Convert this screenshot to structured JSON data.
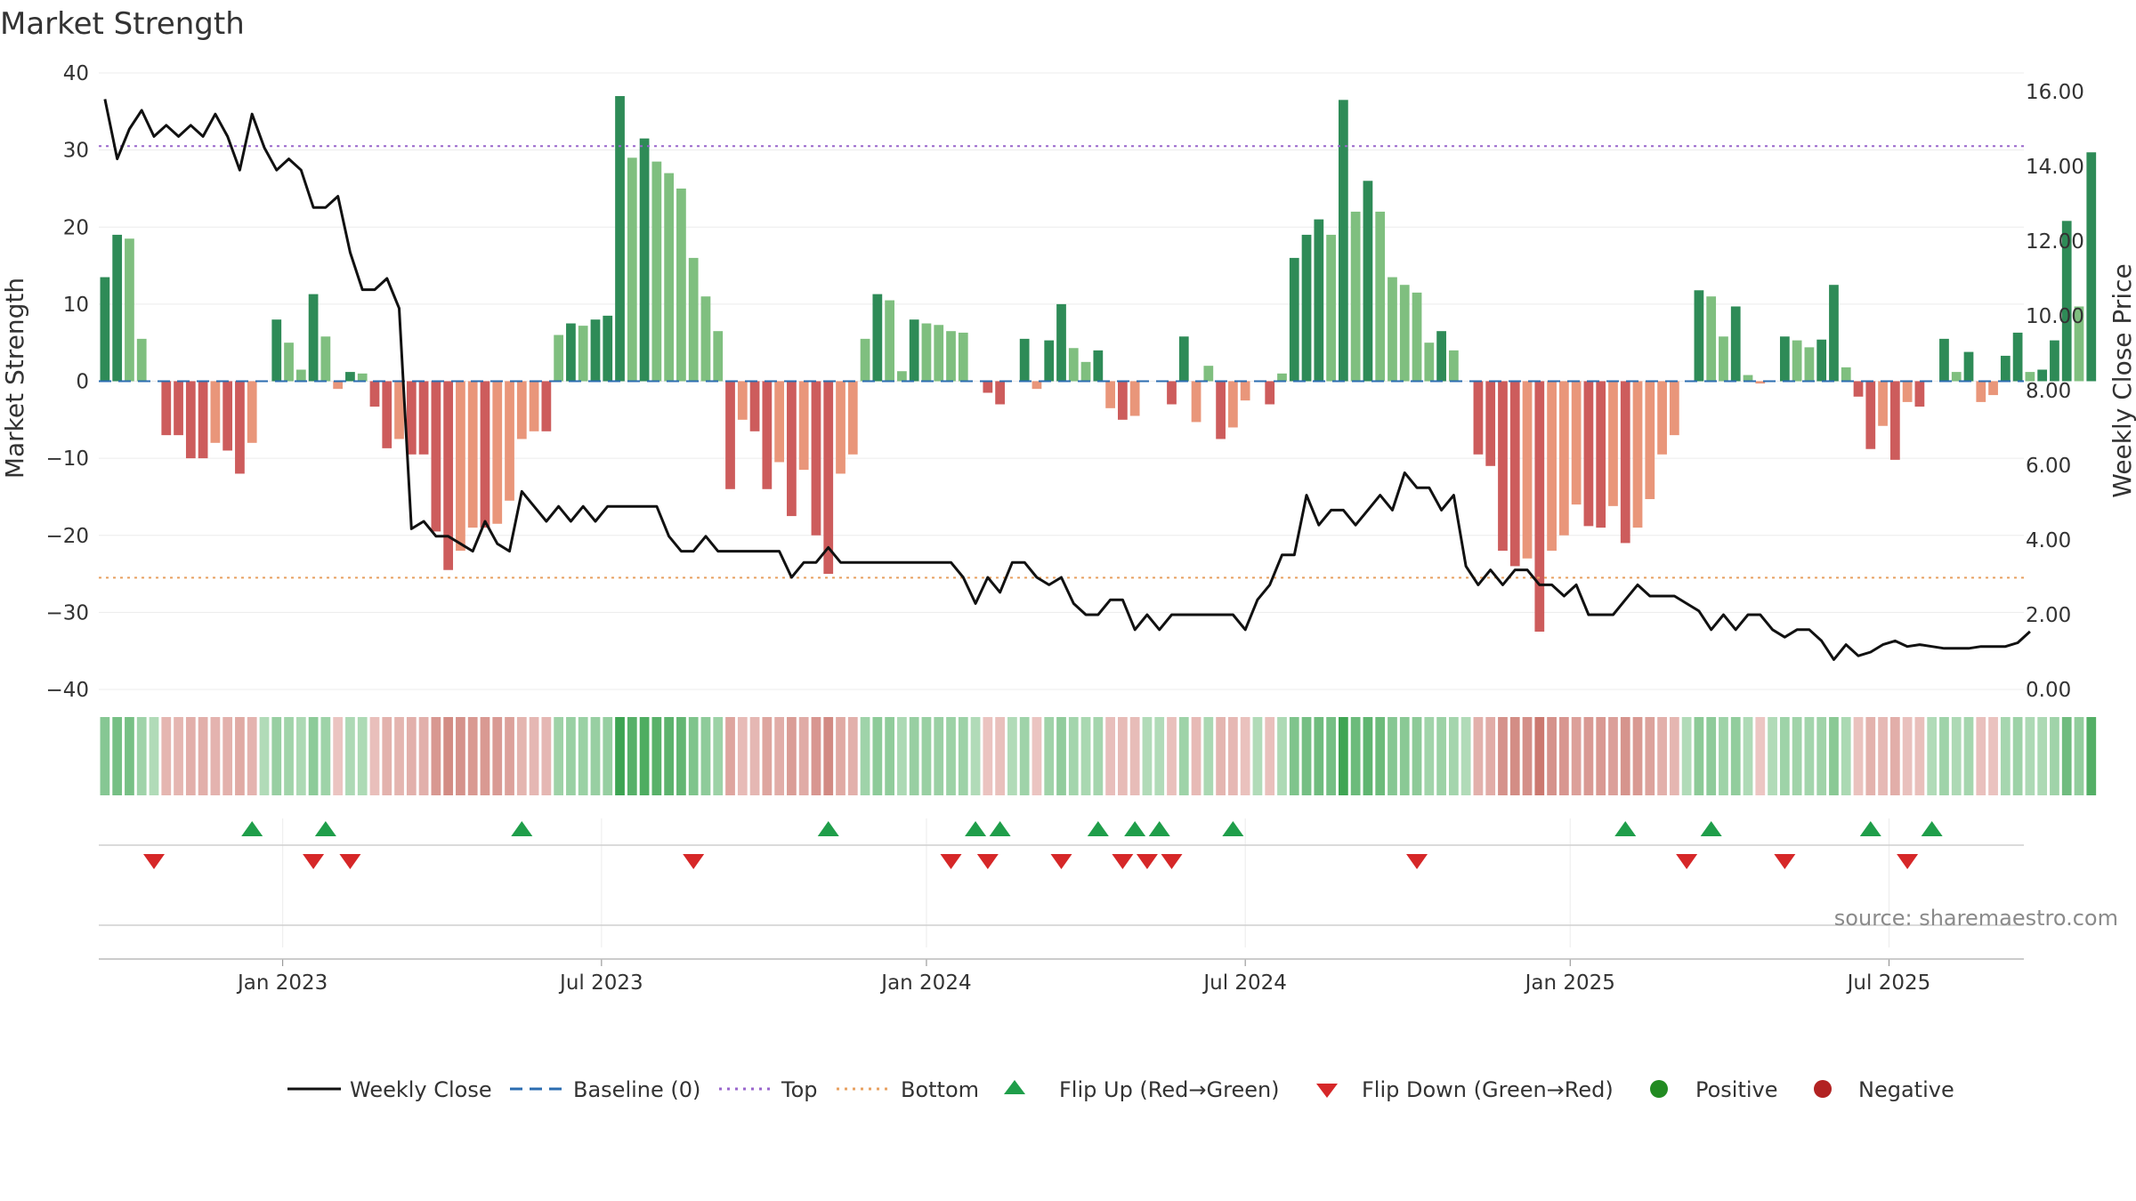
{
  "chart_data": {
    "type": "bar+line",
    "title": "Market Strength",
    "ylabel_left": "Market Strength",
    "ylabel_right": "Weekly Close Price",
    "source": "source: sharemaestro.com",
    "left_axis": {
      "min": -40,
      "max": 40,
      "ticks": [
        "40",
        "30",
        "20",
        "10",
        "0",
        "−10",
        "−20",
        "−30",
        "−40"
      ],
      "tick_values": [
        40,
        30,
        20,
        10,
        0,
        -10,
        -20,
        -30,
        -40
      ]
    },
    "right_axis": {
      "min": 0,
      "max": 16.5,
      "ticks": [
        "16.00",
        "14.00",
        "12.00",
        "10.00",
        "8.00",
        "6.00",
        "4.00",
        "2.00",
        "0.00"
      ],
      "tick_values": [
        16,
        14,
        12,
        10,
        8,
        6,
        4,
        2,
        0
      ]
    },
    "x_axis": {
      "start_week": 0,
      "end_week": 157,
      "ticks": [
        {
          "label": "Jan 2023",
          "week": 15
        },
        {
          "label": "Jul 2023",
          "week": 41
        },
        {
          "label": "Jan 2024",
          "week": 67.5
        },
        {
          "label": "Jul 2024",
          "week": 93.5
        },
        {
          "label": "Jan 2025",
          "week": 120
        },
        {
          "label": "Jul 2025",
          "week": 146
        }
      ]
    },
    "thresholds": {
      "top": 30.5,
      "bottom": -25.5,
      "baseline": 0
    },
    "colors": {
      "pos_strong": "#2e8b57",
      "pos_weak": "#7fbf7f",
      "neg_strong": "#cd5c5c",
      "neg_weak": "#e9967a",
      "line": "#111111",
      "top": "#9966cc",
      "bottom": "#e8a060",
      "baseline": "#2b6cb0",
      "flip_up": "#1f9e4a",
      "flip_down": "#d62728",
      "positive": "#228b22",
      "negative": "#b22222"
    },
    "market_strength": [
      13.5,
      19,
      18.5,
      5.5,
      0,
      -7,
      -7,
      -10,
      -10,
      -8,
      -9,
      -12,
      -8,
      0,
      8,
      5,
      1.5,
      11.3,
      5.8,
      -1,
      1.2,
      1,
      -3.3,
      -8.7,
      -7.5,
      -9.5,
      -9.5,
      -19.5,
      -24.5,
      -22,
      -19,
      -19,
      -18.5,
      -15.5,
      -7.5,
      -6.5,
      -6.5,
      6,
      7.5,
      7.2,
      8,
      8.5,
      37,
      29,
      31.5,
      28.5,
      27,
      25,
      16,
      11,
      6.5,
      -14,
      -5,
      -6.5,
      -14,
      -10.5,
      -17.5,
      -11.5,
      -20,
      -25,
      -12,
      -9.5,
      5.5,
      11.3,
      10.5,
      1.3,
      8,
      7.5,
      7.3,
      6.5,
      6.3,
      0,
      -1.5,
      -3,
      0,
      5.5,
      -1,
      5.3,
      10,
      4.3,
      2.5,
      4,
      -3.5,
      -5,
      -4.5,
      0,
      0,
      -3,
      5.8,
      -5.3,
      2,
      -7.5,
      -6,
      -2.5,
      0,
      -3,
      1,
      16,
      19,
      21,
      19,
      36.5,
      22,
      26,
      22,
      13.5,
      12.5,
      11.5,
      5,
      6.5,
      4,
      0,
      -9.5,
      -11,
      -22,
      -24,
      -23,
      -32.5,
      -22,
      -20,
      -16,
      -18.8,
      -19,
      -16.2,
      -21,
      -19,
      -15.3,
      -9.5,
      -7,
      0,
      11.8,
      11,
      5.8,
      9.7,
      0.8,
      -0.3,
      0,
      5.8,
      5.3,
      4.4,
      5.4,
      12.5,
      1.8,
      -2,
      -8.8,
      -5.8,
      -10.2,
      -2.7,
      -3.3,
      0,
      5.5,
      1.2,
      3.8,
      -2.7,
      -1.8,
      3.3,
      6.3,
      1.2,
      1.5,
      5.3,
      20.8,
      9.7,
      29.7
    ],
    "weekly_close": [
      15.8,
      14.2,
      15,
      15.5,
      14.8,
      15.1,
      14.8,
      15.1,
      14.8,
      15.4,
      14.8,
      13.9,
      15.4,
      14.5,
      13.9,
      14.2,
      13.9,
      12.9,
      12.9,
      13.2,
      11.7,
      10.7,
      10.7,
      11,
      10.2,
      4.3,
      4.5,
      4.1,
      4.1,
      3.9,
      3.7,
      4.5,
      3.9,
      3.7,
      5.3,
      4.9,
      4.5,
      4.9,
      4.5,
      4.9,
      4.5,
      4.9,
      4.9,
      4.9,
      4.9,
      4.9,
      4.1,
      3.7,
      3.7,
      4.1,
      3.7,
      3.7,
      3.7,
      3.7,
      3.7,
      3.7,
      3.0,
      3.4,
      3.4,
      3.8,
      3.4,
      3.4,
      3.4,
      3.4,
      3.4,
      3.4,
      3.4,
      3.4,
      3.4,
      3.4,
      3.0,
      2.3,
      3.0,
      2.6,
      3.4,
      3.4,
      3.0,
      2.8,
      3.0,
      2.3,
      2.0,
      2.0,
      2.4,
      2.4,
      1.6,
      2.0,
      1.6,
      2.0,
      2.0,
      2.0,
      2.0,
      2.0,
      2.0,
      1.6,
      2.4,
      2.8,
      3.6,
      3.6,
      5.2,
      4.4,
      4.8,
      4.8,
      4.4,
      4.8,
      5.2,
      4.8,
      5.8,
      5.4,
      5.4,
      4.8,
      5.2,
      3.3,
      2.8,
      3.2,
      2.8,
      3.2,
      3.2,
      2.8,
      2.8,
      2.5,
      2.8,
      2.0,
      2.0,
      2.0,
      2.4,
      2.8,
      2.5,
      2.5,
      2.5,
      2.3,
      2.1,
      1.6,
      2.0,
      1.6,
      2.0,
      2.0,
      1.6,
      1.4,
      1.6,
      1.6,
      1.3,
      0.8,
      1.2,
      0.9,
      1.0,
      1.2,
      1.3,
      1.15,
      1.2,
      1.15,
      1.1,
      1.1,
      1.1,
      1.15,
      1.15,
      1.15,
      1.25,
      1.55
    ],
    "flip_up_weeks": [
      12,
      18,
      34,
      59,
      71,
      73,
      81,
      84,
      86,
      92,
      124,
      131,
      144,
      149
    ],
    "flip_down_weeks": [
      4,
      17,
      20,
      48,
      69,
      72,
      78,
      83,
      85,
      87,
      107,
      129,
      137,
      147
    ],
    "legend": {
      "weekly_close": "Weekly Close",
      "baseline": "Baseline (0)",
      "top": "Top",
      "bottom": "Bottom",
      "flip_up": "Flip Up (Red→Green)",
      "flip_down": "Flip Down (Green→Red)",
      "positive": "Positive",
      "negative": "Negative"
    }
  }
}
